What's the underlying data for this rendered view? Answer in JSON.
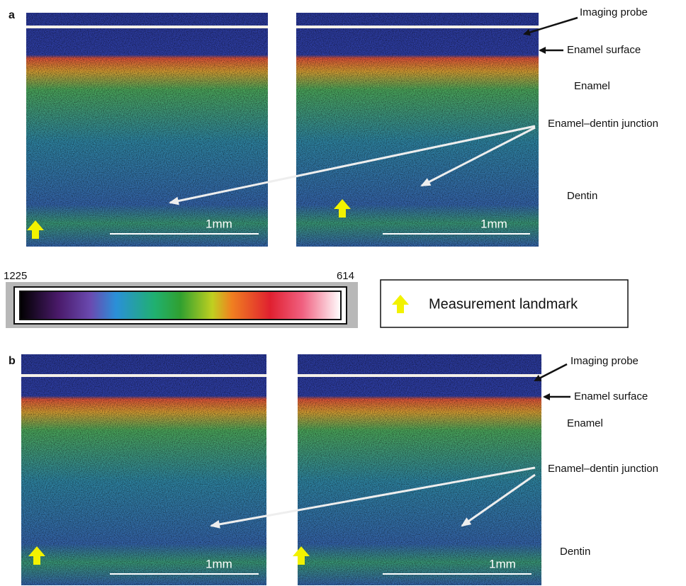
{
  "panels": [
    {
      "label": "a",
      "scale_bars": [
        "1mm",
        "1mm"
      ],
      "annotations": {
        "imaging_probe": "Imaging probe",
        "enamel_surface": "Enamel surface",
        "enamel": "Enamel",
        "junction": "Enamel–dentin junction",
        "dentin": "Dentin"
      }
    },
    {
      "label": "b",
      "scale_bars": [
        "1mm",
        "1mm"
      ],
      "annotations": {
        "imaging_probe": "Imaging probe",
        "enamel_surface": "Enamel surface",
        "enamel": "Enamel",
        "junction": "Enamel–dentin junction",
        "dentin": "Dentin"
      }
    }
  ],
  "colorbar": {
    "left_label": "1225",
    "right_label": "614"
  },
  "legend": {
    "text": "Measurement landmark"
  }
}
